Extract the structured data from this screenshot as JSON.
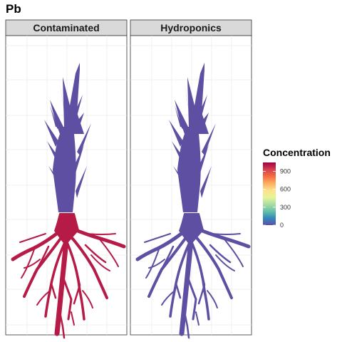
{
  "chart_data": {
    "type": "heatmap",
    "title": "Pb",
    "facets": [
      {
        "name": "Contaminated",
        "shoot_value": 0,
        "root_value": 1000
      },
      {
        "name": "Hydroponics",
        "shoot_value": 0,
        "root_value": 0
      }
    ],
    "legend": {
      "title": "Concentration",
      "placement": "right",
      "ticks": [
        0,
        300,
        600,
        900
      ],
      "range": [
        0,
        1050
      ],
      "palette": [
        "#5E4FA2",
        "#3288BD",
        "#66C2A5",
        "#ABDDA4",
        "#E6F598",
        "#FEE08B",
        "#FDAE61",
        "#F46D43",
        "#D53E4F",
        "#9E0142"
      ]
    },
    "grid": true
  }
}
